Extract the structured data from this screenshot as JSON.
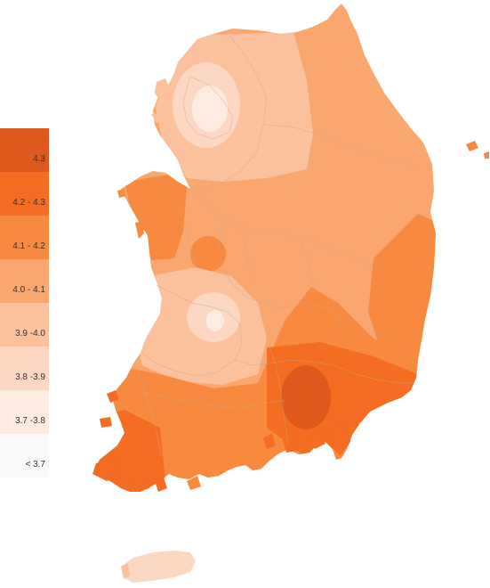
{
  "legend": {
    "items": [
      {
        "label": "4.3",
        "color": "#e0591c"
      },
      {
        "label": "4.2 - 4.3",
        "color": "#f46d22"
      },
      {
        "label": "4.1 - 4.2",
        "color": "#f78a3f"
      },
      {
        "label": "4.0 - 4.1",
        "color": "#f9a66f"
      },
      {
        "label": "3.9 -4.0",
        "color": "#fbc09c"
      },
      {
        "label": "3.8 -3.9",
        "color": "#fcd7c2"
      },
      {
        "label": "3.7 -3.8",
        "color": "#feebdf"
      },
      {
        "label": "< 3.7",
        "color": "#faf8fb"
      }
    ]
  }
}
